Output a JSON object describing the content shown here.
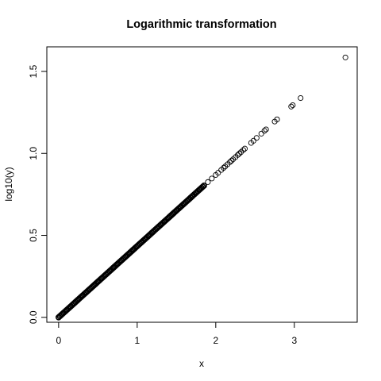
{
  "chart_data": {
    "type": "scatter",
    "title": "Logarithmic transformation",
    "xlabel": "x",
    "ylabel": "log10(y)",
    "xlim": [
      -0.15,
      3.8
    ],
    "ylim": [
      -0.03,
      1.65
    ],
    "x_ticks": [
      0,
      1,
      2,
      3
    ],
    "x_tick_labels": [
      "0",
      "1",
      "2",
      "3"
    ],
    "y_ticks": [
      0.0,
      0.5,
      1.0,
      1.5
    ],
    "y_tick_labels": [
      "0.0",
      "0.5",
      "1.0",
      "1.5"
    ],
    "marker": "open-circle",
    "slope": 0.4343,
    "series": [
      {
        "points": [
          [
            0.0,
            0.0
          ],
          [
            0.05,
            0.0217
          ],
          [
            0.1,
            0.0434
          ],
          [
            0.15,
            0.0651
          ],
          [
            0.2,
            0.0869
          ],
          [
            0.25,
            0.1086
          ],
          [
            0.3,
            0.1303
          ],
          [
            0.35,
            0.152
          ],
          [
            0.4,
            0.1737
          ],
          [
            0.45,
            0.1954
          ],
          [
            0.5,
            0.2172
          ],
          [
            0.55,
            0.2389
          ],
          [
            0.6,
            0.2606
          ],
          [
            0.65,
            0.2823
          ],
          [
            0.7,
            0.304
          ],
          [
            0.75,
            0.3257
          ],
          [
            0.8,
            0.3474
          ],
          [
            0.85,
            0.3692
          ],
          [
            0.9,
            0.3909
          ],
          [
            0.95,
            0.4126
          ],
          [
            1.0,
            0.4343
          ],
          [
            1.05,
            0.456
          ],
          [
            1.1,
            0.4777
          ],
          [
            1.15,
            0.4994
          ],
          [
            1.2,
            0.5212
          ],
          [
            1.25,
            0.5429
          ],
          [
            1.3,
            0.5646
          ],
          [
            1.35,
            0.5863
          ],
          [
            1.4,
            0.608
          ],
          [
            1.45,
            0.6297
          ],
          [
            1.5,
            0.6514
          ],
          [
            1.55,
            0.6732
          ],
          [
            1.6,
            0.6949
          ],
          [
            1.65,
            0.7166
          ],
          [
            1.7,
            0.7383
          ],
          [
            1.75,
            0.76
          ],
          [
            1.8,
            0.7817
          ],
          [
            1.85,
            0.8034
          ],
          [
            1.9,
            0.8252
          ],
          [
            1.95,
            0.8469
          ],
          [
            2.0,
            0.8686
          ],
          [
            2.03,
            0.8816
          ],
          [
            2.07,
            0.899
          ],
          [
            2.1,
            0.912
          ],
          [
            2.12,
            0.9207
          ],
          [
            2.15,
            0.9337
          ],
          [
            2.18,
            0.9468
          ],
          [
            2.2,
            0.9555
          ],
          [
            2.22,
            0.9641
          ],
          [
            2.25,
            0.9772
          ],
          [
            2.28,
            0.9902
          ],
          [
            2.3,
            0.9989
          ],
          [
            2.32,
            1.0076
          ],
          [
            2.35,
            1.0206
          ],
          [
            2.37,
            1.0293
          ],
          [
            2.45,
            1.064
          ],
          [
            2.48,
            1.0771
          ],
          [
            2.52,
            1.0944
          ],
          [
            2.58,
            1.1205
          ],
          [
            2.62,
            1.1379
          ],
          [
            2.64,
            1.1465
          ],
          [
            2.75,
            1.1943
          ],
          [
            2.78,
            1.2073
          ],
          [
            2.96,
            1.2855
          ],
          [
            2.98,
            1.2942
          ],
          [
            3.08,
            1.3376
          ],
          [
            3.65,
            1.5852
          ]
        ]
      }
    ]
  }
}
